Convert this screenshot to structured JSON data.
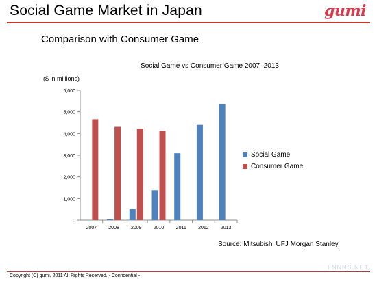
{
  "slide": {
    "title": "Social Game Market in Japan",
    "subtitle": "Comparison with Consumer Game",
    "logo": "gumi",
    "source": "Source: Mitsubishi UFJ Morgan Stanley",
    "footer": "Copyright (C) gumi. 2011 All Rights Reserved.   -   Confidential   -",
    "watermark": "LNNNS.NET"
  },
  "colors": {
    "accent": "#c0392b",
    "social": "#4f81bd",
    "consumer": "#c0504d"
  },
  "chart_data": {
    "type": "bar",
    "title": "Social Game vs Consumer Game   2007–2013",
    "ylabel": "($ in millions)",
    "xlabel": "",
    "categories": [
      "2007",
      "2008",
      "2009",
      "2010",
      "2011",
      "2012",
      "2013"
    ],
    "ylim": [
      0,
      6000
    ],
    "yticks": [
      0,
      1000,
      2000,
      3000,
      4000,
      5000,
      6000
    ],
    "ytick_labels": [
      "0",
      "1,000",
      "2,000",
      "3,000",
      "4,000",
      "5,000",
      "6,000"
    ],
    "legend_position": "right",
    "grid": false,
    "series": [
      {
        "name": "Social Game",
        "color": "#4f81bd",
        "values": [
          0,
          50,
          520,
          1380,
          3090,
          4400,
          5370
        ]
      },
      {
        "name": "Consumer Game",
        "color": "#c0504d",
        "values": [
          4660,
          4310,
          4230,
          4120,
          0,
          0,
          0
        ]
      }
    ]
  }
}
